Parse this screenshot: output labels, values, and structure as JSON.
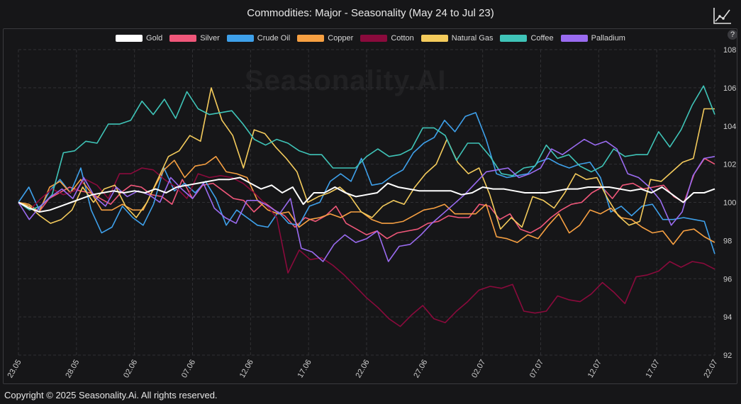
{
  "title": "Commodities: Major - Seasonality (May 24 to Jul 23)",
  "watermark": "Seasonality.AI",
  "footer": "Copyright © 2025 Seasonality.Ai. All rights reserved.",
  "help_label": "?",
  "chart_data": {
    "type": "line",
    "title": "Commodities: Major - Seasonality (May 24 to Jul 23)",
    "ylim": [
      92,
      108
    ],
    "y_ticks": [
      92,
      94,
      96,
      98,
      100,
      102,
      104,
      106,
      108
    ],
    "x_tick_labels": [
      "23.05",
      "28.05",
      "02.06",
      "07.06",
      "12.06",
      "17.06",
      "22.06",
      "27.06",
      "02.07",
      "07.07",
      "12.07",
      "17.07",
      "22.07"
    ],
    "grid": true,
    "legend_position": "top-center",
    "series": [
      {
        "name": "Gold",
        "color": "#ffffff",
        "values": [
          100,
          99.7,
          99.5,
          99.6,
          99.8,
          100,
          100.2,
          100.4,
          100.5,
          100.6,
          100.5,
          100.6,
          100.5,
          100.7,
          100.5,
          100.8,
          100.9,
          101,
          101.1,
          101.2,
          101.2,
          101.3,
          101,
          100.7,
          100.9,
          100.5,
          100.8,
          99.9,
          100.5,
          100.5,
          100.8,
          100.5,
          100.3,
          100.4,
          100.5,
          101,
          100.8,
          100.7,
          100.6,
          100.6,
          100.6,
          100.6,
          100.4,
          100.5,
          100.8,
          100.7,
          100.7,
          100.6,
          100.5,
          100.5,
          100.5,
          100.6,
          100.7,
          100.7,
          100.8,
          100.8,
          100.8,
          100.7,
          100.6,
          100.7,
          100.5,
          100.8,
          100.4,
          100,
          100.5,
          100.5,
          100.7
        ]
      },
      {
        "name": "Silver",
        "color": "#f0577a",
        "values": [
          100,
          99.8,
          99.5,
          100.2,
          100.5,
          100.8,
          100.6,
          100.5,
          100.2,
          99.9,
          100.5,
          100.9,
          100.8,
          100.4,
          100.3,
          99.9,
          101.2,
          100.2,
          100.9,
          101,
          100.6,
          100.2,
          100.1,
          99.5,
          100,
          99.6,
          99.3,
          98.7,
          99.2,
          99,
          99.3,
          99.8,
          98.9,
          98.6,
          98.3,
          98.5,
          98.1,
          98.4,
          98.5,
          98.6,
          98.9,
          99,
          99.3,
          99.2,
          99.2,
          99.9,
          99.8,
          99.1,
          99.4,
          98.6,
          98.4,
          98.7,
          99.2,
          99.6,
          99.9,
          100,
          100.5,
          100.8,
          100.2,
          100.9,
          101,
          100.7,
          100.8,
          100.9,
          100.3,
          100,
          101.5,
          102.3,
          102
        ]
      },
      {
        "name": "Crude Oil",
        "color": "#3ea0ea",
        "values": [
          100,
          100.8,
          99.6,
          100.6,
          101.2,
          100.5,
          101.8,
          99.6,
          98.4,
          98.7,
          99.8,
          99.2,
          98.8,
          99.9,
          101.8,
          100.6,
          101,
          100.5,
          101.1,
          100.2,
          98.8,
          99.6,
          99.2,
          98.8,
          98.7,
          99.5,
          98.9,
          98.8,
          99.8,
          100,
          101.1,
          101.5,
          101.1,
          102.3,
          100.9,
          101,
          101.4,
          101.7,
          102.6,
          103.1,
          103.4,
          104.3,
          103.7,
          104.5,
          104.7,
          103.3,
          101.5,
          101.3,
          101.4,
          101.5,
          102.1,
          102.3,
          102,
          101.8,
          102,
          102.1,
          101.3,
          99.5,
          99.8,
          99.3,
          99.8,
          99.9,
          99.1,
          99.1,
          99.2,
          99.1,
          99,
          97.3
        ]
      },
      {
        "name": "Copper",
        "color": "#f7a042",
        "values": [
          100,
          99.9,
          99.5,
          100.8,
          101.1,
          100.5,
          101.2,
          100.5,
          99.6,
          99.6,
          99.9,
          99.6,
          99.6,
          100.7,
          101.7,
          102.2,
          101.3,
          101.9,
          102,
          102.4,
          101.6,
          101.5,
          101.3,
          100.1,
          99.6,
          99.4,
          99.5,
          98.7,
          99.1,
          99.2,
          99.4,
          99.2,
          99.5,
          99.5,
          99.1,
          98.9,
          98.9,
          99,
          99.3,
          99.6,
          99.7,
          99.9,
          99.4,
          99.4,
          99.4,
          99.9,
          98.2,
          98.1,
          97.9,
          98.3,
          98.1,
          98.8,
          99.4,
          98.4,
          98.8,
          99.6,
          99.4,
          99.7,
          99.2,
          99.1,
          98.7,
          98.4,
          98.5,
          97.8,
          98.5,
          98.6,
          98.2,
          97.9
        ]
      },
      {
        "name": "Cotton",
        "color": "#8a0a3c",
        "values": [
          100,
          99.6,
          100.2,
          100.7,
          100.4,
          100.6,
          101.2,
          100.9,
          100.2,
          101.5,
          101.5,
          101.8,
          101.7,
          101.2,
          100.8,
          100.2,
          101.5,
          101.3,
          101.4,
          101.3,
          101,
          100.5,
          99.9,
          99.2,
          96.3,
          97.5,
          97,
          97.1,
          96.7,
          96.2,
          95.6,
          95,
          94.5,
          93.9,
          93.5,
          94.1,
          94.6,
          93.9,
          93.7,
          94.3,
          94.8,
          95.4,
          95.6,
          95.5,
          95.7,
          94.3,
          94.2,
          94.3,
          95.1,
          94.9,
          94.8,
          95.2,
          95.8,
          95.3,
          94.7,
          96.1,
          96.2,
          96.4,
          96.9,
          96.6,
          96.9,
          96.8,
          96.5
        ]
      },
      {
        "name": "Natural Gas",
        "color": "#f4cb5c",
        "values": [
          100,
          99.8,
          99.3,
          98.9,
          99.1,
          99.6,
          100.8,
          100,
          100.7,
          100.9,
          99.8,
          99.2,
          100,
          101.2,
          102.4,
          102.7,
          103.5,
          103.2,
          106,
          104.3,
          103.5,
          101.8,
          103.8,
          103.6,
          102.9,
          102.3,
          101.6,
          100,
          100.3,
          100.5,
          100.8,
          100.3,
          99.5,
          99.2,
          99.8,
          100.1,
          99.9,
          100.8,
          101.5,
          102,
          103.3,
          102.1,
          101.5,
          101.8,
          100.4,
          98.6,
          99.2,
          98.7,
          100.3,
          100.1,
          99.7,
          100.5,
          101.5,
          101.2,
          101.3,
          100.2,
          99.3,
          98.8,
          99,
          101.2,
          101.1,
          101.6,
          102.1,
          102.3,
          104.9,
          104.9
        ]
      },
      {
        "name": "Coffee",
        "color": "#3fc4b8",
        "values": [
          100,
          99.6,
          99.8,
          100.4,
          102.6,
          102.7,
          103.2,
          103.1,
          104.1,
          104.1,
          104.3,
          105.3,
          104.6,
          105.4,
          104.4,
          105.8,
          104.9,
          104.6,
          104.7,
          104.8,
          104.1,
          103.3,
          103,
          103.3,
          103.1,
          102.7,
          102.5,
          102.5,
          101.8,
          101.8,
          101.8,
          102.4,
          102.8,
          102.4,
          102.5,
          102.8,
          103.9,
          103.9,
          103.5,
          102.2,
          103.1,
          103.1,
          102.4,
          101.5,
          101.4,
          101.8,
          101.9,
          103,
          102.3,
          102.5,
          101.9,
          101.6,
          101.9,
          102.8,
          102.4,
          102.5,
          102.5,
          103.7,
          102.9,
          103.8,
          105.1,
          106.1,
          104.6
        ]
      },
      {
        "name": "Palladium",
        "color": "#9a6bf0",
        "values": [
          100,
          99.1,
          99.8,
          100.3,
          100.7,
          100.2,
          101.3,
          100.3,
          99.8,
          100.8,
          100.3,
          100.6,
          100.4,
          100,
          101.3,
          100.7,
          100.2,
          101,
          99.7,
          99.2,
          98.9,
          100.1,
          100.1,
          99.8,
          99.4,
          100.2,
          97.6,
          97.4,
          96.9,
          97.8,
          98.3,
          97.9,
          98.1,
          98.5,
          96.9,
          97.7,
          97.8,
          98.3,
          98.9,
          99.4,
          99.9,
          100.4,
          101,
          101.6,
          101.7,
          101.8,
          101.3,
          101.5,
          101.8,
          102.8,
          102.5,
          102.9,
          103.3,
          103,
          103.2,
          102.8,
          101.5,
          101.3,
          100.8,
          100.1,
          98.8,
          99.5,
          101.4,
          102.3,
          102.4
        ]
      }
    ]
  }
}
